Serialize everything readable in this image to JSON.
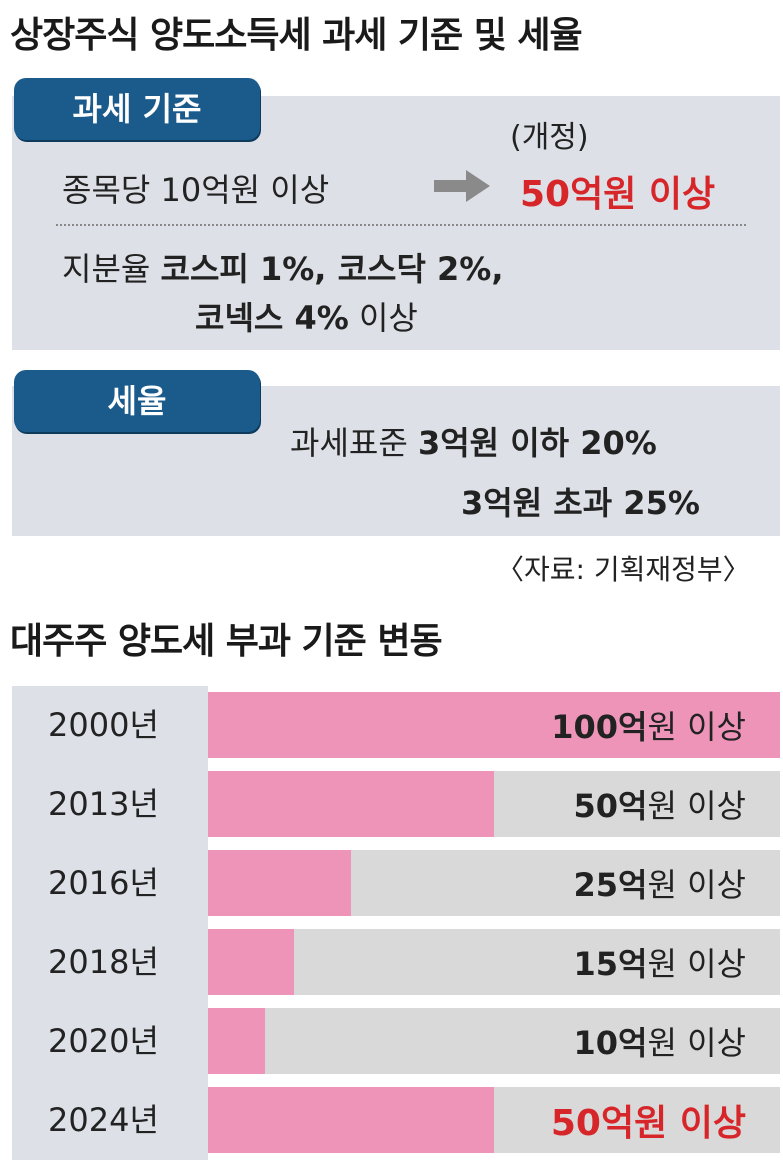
{
  "section1": {
    "title": "상장주식 양도소득세 과세 기준 및 세율",
    "criteria_badge": "과세 기준",
    "revised_label": "(개정)",
    "per_stock_prefix": "종목당 10억원 이상",
    "per_stock_new": "50억원 이상",
    "arrow_icon": "right-arrow-icon",
    "share_prefix": "지분율 ",
    "share_bold_line1": "코스피 1%, 코스닥 2%,",
    "share_bold_line2": "코넥스 4%",
    "share_suffix_line2": " 이상",
    "rate_badge": "세율",
    "rate_line1_prefix": "과세표준 ",
    "rate_line1_bold": "3억원 이하 20%",
    "rate_line2_bold": "3억원 초과 25%",
    "source": "〈자료: 기획재정부〉"
  },
  "section2": {
    "title": "대주주 양도세 부과 기준 변동"
  },
  "chart_data": {
    "type": "bar",
    "orientation": "horizontal",
    "title": "대주주 양도세 부과 기준 변동",
    "categories": [
      "2000년",
      "2013년",
      "2016년",
      "2018년",
      "2020년",
      "2024년"
    ],
    "values": [
      100,
      50,
      25,
      15,
      10,
      50
    ],
    "value_unit": "억원",
    "labels": [
      {
        "num": "100억",
        "rest": "원 이상"
      },
      {
        "num": "50억",
        "rest": "원 이상"
      },
      {
        "num": "25억",
        "rest": "원 이상"
      },
      {
        "num": "15억",
        "rest": "원 이상"
      },
      {
        "num": "10억",
        "rest": "원 이상"
      },
      {
        "num": "50억원 이상",
        "rest": ""
      }
    ],
    "highlight_last": true,
    "xlim": [
      0,
      100
    ],
    "colors": {
      "bar": "#ee94b8",
      "track": "#d9d9d9",
      "highlight_text": "#d7262a",
      "year_column": "#dde1e7"
    }
  }
}
